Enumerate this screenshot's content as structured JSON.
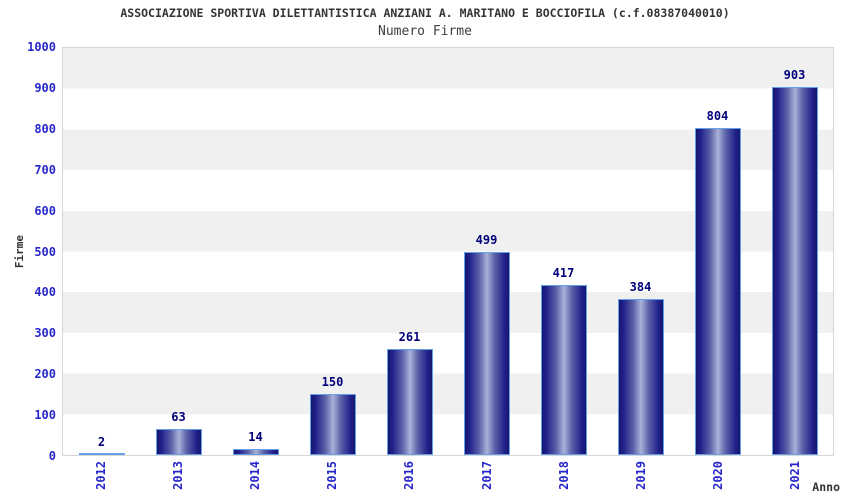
{
  "chart_data": {
    "type": "bar",
    "title": "ASSOCIAZIONE SPORTIVA DILETTANTISTICA ANZIANI A. MARITANO E BOCCIOFILA (c.f.08387040010)",
    "subtitle": "Numero Firme",
    "xlabel": "Anno",
    "ylabel": "Firme",
    "categories": [
      "2012",
      "2013",
      "2014",
      "2015",
      "2016",
      "2017",
      "2018",
      "2019",
      "2020",
      "2021"
    ],
    "values": [
      2,
      63,
      14,
      150,
      261,
      499,
      417,
      384,
      804,
      903
    ],
    "ylim": [
      0,
      1000
    ],
    "yticks": [
      0,
      100,
      200,
      300,
      400,
      500,
      600,
      700,
      800,
      900,
      1000
    ],
    "grid": "alternating horizontal bands, gray band between odd hundreds",
    "legend": "none",
    "colors": {
      "bar_edge": "#17176e",
      "bar_highlight": "#aab2da",
      "bar_border": "#64a0e8",
      "axis_tick_text": "#2727cc",
      "value_label_text": "#00007a",
      "band_gray": "#f0f0f0",
      "band_white": "#ffffff",
      "title_text": "#333333",
      "plot_border": "#d6d6d6"
    }
  }
}
